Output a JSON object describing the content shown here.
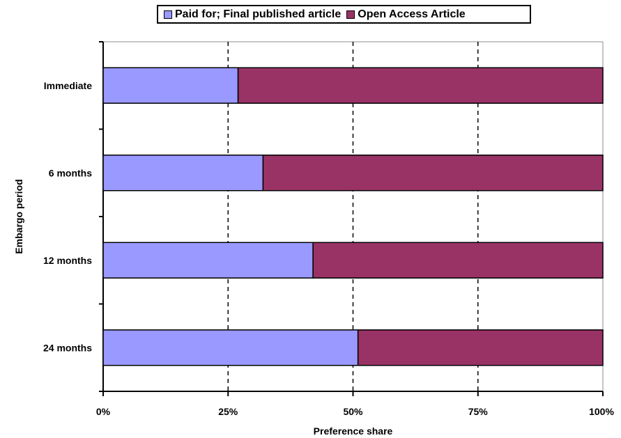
{
  "chart_data": {
    "type": "bar",
    "orientation": "horizontal",
    "stacked": true,
    "title": "",
    "xlabel": "Preference share",
    "ylabel": "Embargo period",
    "categories": [
      "Immediate",
      "6 months",
      "12 months",
      "24 months"
    ],
    "x_ticks": [
      "0%",
      "25%",
      "50%",
      "75%",
      "100%"
    ],
    "xlim": [
      0,
      100
    ],
    "grid": "dashed vertical gridlines at 25%, 50%, 75%",
    "legend_position": "top",
    "series": [
      {
        "name": "Paid for; Final published article",
        "values": [
          27,
          32,
          42,
          51
        ],
        "color": "#9999ff"
      },
      {
        "name": "Open Access Article",
        "values": [
          73,
          68,
          58,
          49
        ],
        "color": "#993366"
      }
    ]
  }
}
